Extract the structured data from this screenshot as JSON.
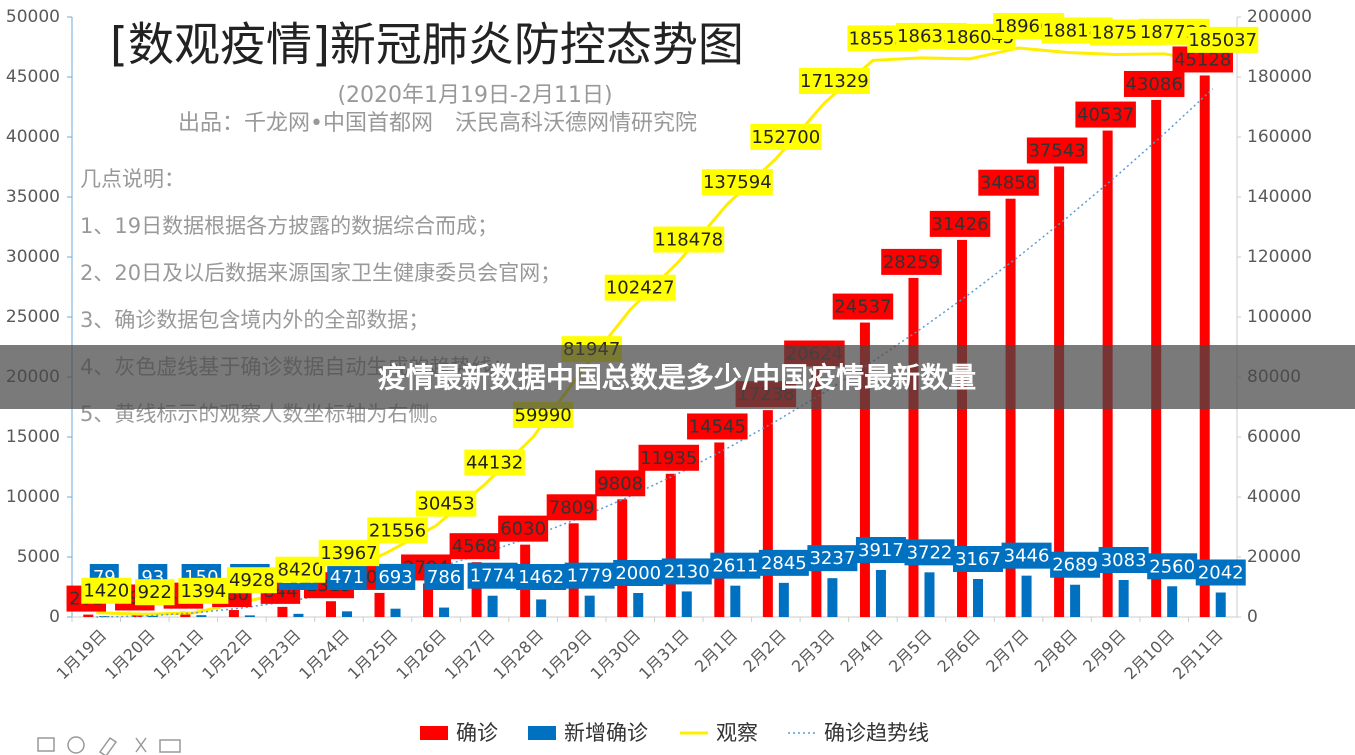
{
  "chart_data": {
    "type": "bar-line",
    "title": "[数观疫情]新冠肺炎防控态势图",
    "subtitle": "(2020年1月19日-2月11日)",
    "source": "出品：千龙网•中国首都网　沃民高科沃德网情研究院",
    "annotations": [
      "几点说明：",
      "1、19日数据根据各方披露的数据综合而成；",
      "2、20日及以后数据来源国家卫生健康委员会官网；",
      "3、确诊数据包含境内外的全部数据；",
      "4、灰色虚线基于确诊数据自动生成的趋势线；",
      "5、黄线标示的观察人数坐标轴为右侧。"
    ],
    "categories": [
      "1月19日",
      "1月20日",
      "1月21日",
      "1月22日",
      "1月23日",
      "1月24日",
      "1月25日",
      "1月26日",
      "1月27日",
      "1月28日",
      "1月29日",
      "1月30日",
      "1月31日",
      "2月1日",
      "2月2日",
      "2月3日",
      "2月4日",
      "2月5日",
      "2月6日",
      "2月7日",
      "2月8日",
      "2月9日",
      "2月10日",
      "2月11日"
    ],
    "series": [
      {
        "name": "确诊",
        "kind": "bar",
        "color": "#ff0000",
        "values": [
          201,
          295,
          445,
          580,
          844,
          1315,
          2008,
          2794,
          4568,
          6030,
          7809,
          9808,
          11935,
          14545,
          17238,
          20624,
          24537,
          28259,
          31426,
          34858,
          37543,
          40537,
          43086,
          45128
        ]
      },
      {
        "name": "新增确诊",
        "kind": "bar",
        "color": "#0070c0",
        "values": [
          79,
          93,
          150,
          135,
          264,
          471,
          693,
          786,
          1774,
          1462,
          1779,
          2000,
          2130,
          2611,
          2845,
          3237,
          3917,
          3722,
          3167,
          3446,
          2689,
          3083,
          2560,
          2042
        ]
      },
      {
        "name": "观察",
        "kind": "line",
        "axis": "y2",
        "color": "#ffff00",
        "values": [
          1420,
          922,
          1394,
          4928,
          8420,
          13967,
          21556,
          30453,
          44132,
          59990,
          81947,
          102427,
          118478,
          137594,
          152700,
          171329,
          185555,
          186354,
          186045,
          189660,
          188183,
          187518,
          187728,
          185037
        ]
      },
      {
        "name": "确诊趋势线",
        "kind": "trend",
        "color": "#5b9bd5",
        "values": [
          0,
          83,
          333,
          749,
          1331,
          2080,
          2995,
          4077,
          5325,
          6739,
          8320,
          10067,
          11981,
          14061,
          16307,
          18720,
          21299,
          24045,
          26957,
          30035,
          33280,
          36691,
          40269,
          44013
        ]
      }
    ],
    "ylim": [
      0,
      50000
    ],
    "yticks": [
      0,
      5000,
      10000,
      15000,
      20000,
      25000,
      30000,
      35000,
      40000,
      45000,
      50000
    ],
    "y2lim": [
      0,
      200000
    ],
    "y2ticks": [
      0,
      20000,
      40000,
      60000,
      80000,
      100000,
      120000,
      140000,
      160000,
      180000,
      200000
    ],
    "legend": "bottom"
  },
  "overlay": {
    "text": "疫情最新数据中国总数是多少/中国疫情最新数量"
  }
}
